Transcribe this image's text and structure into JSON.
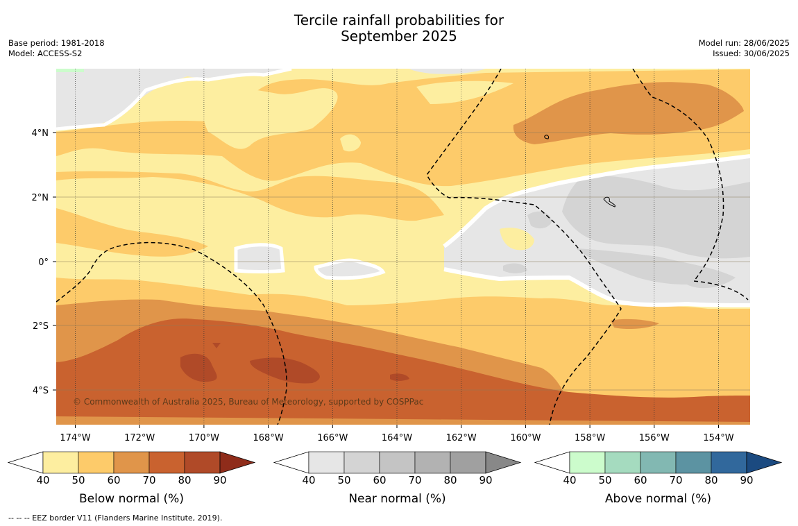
{
  "title_line1": "Tercile rainfall probabilities for",
  "title_line2": "September 2025",
  "base_period": "Base period: 1981-2018",
  "model": "Model: ACCESS-S2",
  "model_run": "Model run: 28/06/2025",
  "issued": "Issued: 30/06/2025",
  "copyright": "© Commonwealth of Australia 2025, Bureau of Meteorology, supported by COSPPac",
  "footnote": "--  --  -- EEZ border V11 (Flanders Marine Institute, 2019).",
  "lon_ticks": [
    "174°W",
    "172°W",
    "170°W",
    "168°W",
    "166°W",
    "164°W",
    "162°W",
    "160°W",
    "158°W",
    "156°W",
    "154°W"
  ],
  "lat_ticks": [
    "4°N",
    "2°N",
    "0°",
    "2°S",
    "4°S"
  ],
  "colorbars": [
    {
      "name": "below",
      "label": "Below normal (%)",
      "ticks": [
        "40",
        "50",
        "60",
        "70",
        "80",
        "90"
      ],
      "colors": [
        "#fdeea0",
        "#fdcb6a",
        "#e0954a",
        "#c9622f",
        "#b04a28",
        "#8f2c1a"
      ]
    },
    {
      "name": "near",
      "label": "Near normal (%)",
      "ticks": [
        "40",
        "50",
        "60",
        "70",
        "80",
        "90"
      ],
      "colors": [
        "#e6e6e6",
        "#d4d4d4",
        "#c4c4c4",
        "#b2b2b2",
        "#a0a0a0",
        "#888888"
      ]
    },
    {
      "name": "above",
      "label": "Above normal (%)",
      "ticks": [
        "40",
        "50",
        "60",
        "70",
        "80",
        "90"
      ],
      "colors": [
        "#ccfccc",
        "#a5dbbf",
        "#82b8b2",
        "#5c93a2",
        "#31689c",
        "#1b4a80"
      ]
    }
  ]
}
